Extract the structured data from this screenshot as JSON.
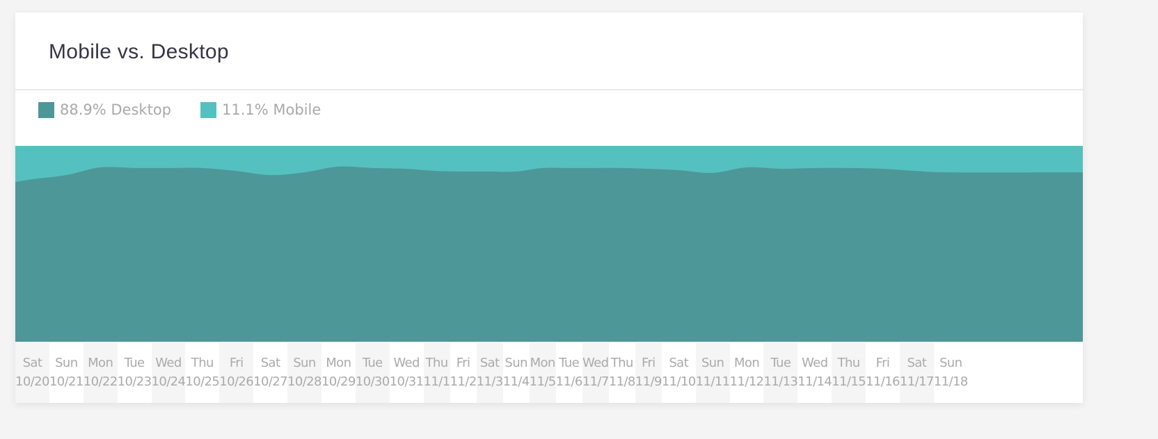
{
  "header": {
    "title": "Mobile vs. Desktop"
  },
  "legend": [
    {
      "label": "88.9% Desktop",
      "color": "#4d9799"
    },
    {
      "label": "11.1% Mobile",
      "color": "#55c0c0"
    }
  ],
  "chart_data": {
    "type": "area",
    "stacked": true,
    "normalized_percent": true,
    "ylim": [
      0,
      100
    ],
    "grid": false,
    "legend_position": "top-left",
    "categories": [
      {
        "day": "Sat",
        "date": "10/20"
      },
      {
        "day": "Sun",
        "date": "10/21"
      },
      {
        "day": "Mon",
        "date": "10/22"
      },
      {
        "day": "Tue",
        "date": "10/23"
      },
      {
        "day": "Wed",
        "date": "10/24"
      },
      {
        "day": "Thu",
        "date": "10/25"
      },
      {
        "day": "Fri",
        "date": "10/26"
      },
      {
        "day": "Sat",
        "date": "10/27"
      },
      {
        "day": "Sun",
        "date": "10/28"
      },
      {
        "day": "Mon",
        "date": "10/29"
      },
      {
        "day": "Tue",
        "date": "10/30"
      },
      {
        "day": "Wed",
        "date": "10/31"
      },
      {
        "day": "Thu",
        "date": "11/1"
      },
      {
        "day": "Fri",
        "date": "11/2"
      },
      {
        "day": "Sat",
        "date": "11/3"
      },
      {
        "day": "Sun",
        "date": "11/4"
      },
      {
        "day": "Mon",
        "date": "11/5"
      },
      {
        "day": "Tue",
        "date": "11/6"
      },
      {
        "day": "Wed",
        "date": "11/7"
      },
      {
        "day": "Thu",
        "date": "11/8"
      },
      {
        "day": "Fri",
        "date": "11/9"
      },
      {
        "day": "Sat",
        "date": "11/10"
      },
      {
        "day": "Sun",
        "date": "11/11"
      },
      {
        "day": "Mon",
        "date": "11/12"
      },
      {
        "day": "Tue",
        "date": "11/13"
      },
      {
        "day": "Wed",
        "date": "11/14"
      },
      {
        "day": "Thu",
        "date": "11/15"
      },
      {
        "day": "Fri",
        "date": "11/16"
      },
      {
        "day": "Sat",
        "date": "11/17"
      },
      {
        "day": "Sun",
        "date": "11/18"
      }
    ],
    "series": [
      {
        "name": "Desktop",
        "color": "#4d9799",
        "values": [
          83.0,
          85.1,
          89.0,
          88.7,
          88.7,
          88.7,
          87.2,
          85.1,
          86.5,
          89.4,
          88.7,
          88.3,
          87.2,
          86.9,
          86.9,
          86.9,
          88.7,
          88.7,
          88.7,
          88.7,
          88.3,
          87.6,
          86.2,
          89.0,
          88.3,
          88.7,
          88.7,
          88.3,
          87.2,
          86.5
        ]
      },
      {
        "name": "Mobile",
        "color": "#55c0c0",
        "values": [
          17.0,
          14.9,
          11.0,
          11.3,
          11.3,
          11.3,
          12.8,
          14.9,
          13.5,
          10.6,
          11.3,
          11.7,
          12.8,
          13.1,
          13.1,
          13.1,
          11.3,
          11.3,
          11.3,
          11.3,
          11.7,
          12.4,
          13.8,
          11.0,
          11.7,
          11.3,
          11.3,
          11.7,
          12.8,
          13.5
        ]
      }
    ]
  }
}
